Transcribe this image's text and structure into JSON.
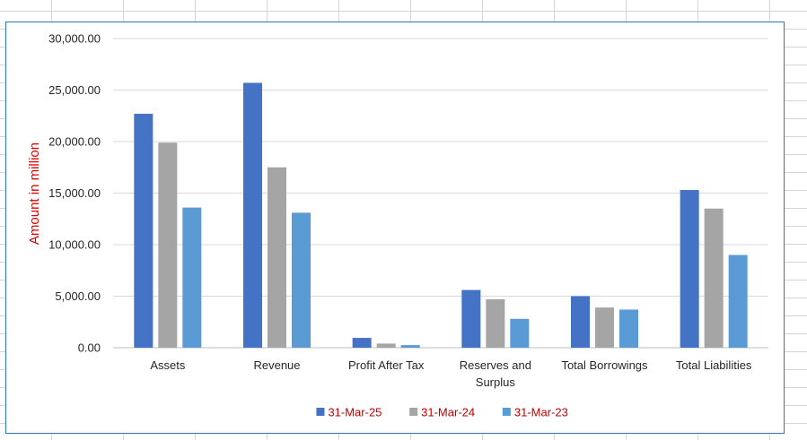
{
  "chart_data": {
    "type": "bar",
    "title": "",
    "xlabel": "",
    "ylabel": "Amount in million",
    "ylim": [
      0,
      30000
    ],
    "yticks": [
      "0.00",
      "5,000.00",
      "10,000.00",
      "15,000.00",
      "20,000.00",
      "25,000.00",
      "30,000.00"
    ],
    "categories": [
      "Assets",
      "Revenue",
      "Profit After Tax",
      "Reserves and Surplus",
      "Total Borrowings",
      "Total Liabilities"
    ],
    "category_lines": [
      [
        "Assets"
      ],
      [
        "Revenue"
      ],
      [
        "Profit After Tax"
      ],
      [
        "Reserves and",
        "Surplus"
      ],
      [
        "Total Borrowings"
      ],
      [
        "Total Liabilities"
      ]
    ],
    "series": [
      {
        "name": "31-Mar-25",
        "color": "#4472c4",
        "values": [
          22700,
          25700,
          950,
          5600,
          5000,
          15300
        ]
      },
      {
        "name": "31-Mar-24",
        "color": "#a5a5a5",
        "values": [
          19900,
          17500,
          400,
          4700,
          3900,
          13500
        ]
      },
      {
        "name": "31-Mar-23",
        "color": "#5b9bd5",
        "values": [
          13600,
          13100,
          250,
          2800,
          3700,
          9000
        ]
      }
    ],
    "grid": true,
    "legend_position": "bottom"
  }
}
